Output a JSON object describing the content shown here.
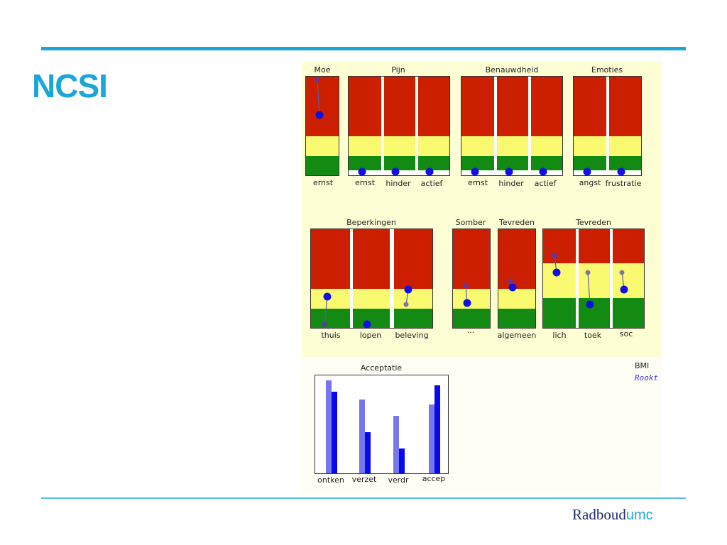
{
  "slide": {
    "title": "NCSI",
    "accent_color": "#1aa6d9",
    "logo": {
      "part1": "Radboud",
      "part2": "umc"
    }
  },
  "zones": {
    "red": "#cc1f00",
    "yellow": "#fafa70",
    "green": "#138a12"
  },
  "panels": [
    {
      "id": "moe",
      "title": "Moe",
      "labels": [
        "ernst"
      ]
    },
    {
      "id": "pijn",
      "title": "Pijn",
      "labels": [
        "ernst",
        "hinder",
        "actief"
      ]
    },
    {
      "id": "benauwdheid",
      "title": "Benauwdheid",
      "labels": [
        "ernst",
        "hinder",
        "actief"
      ]
    },
    {
      "id": "emoties",
      "title": "Emoties",
      "labels": [
        "angst",
        "frustratie"
      ]
    },
    {
      "id": "beperkingen",
      "title": "Beperkingen",
      "labels": [
        "thuis",
        "lopen",
        "beleving"
      ]
    },
    {
      "id": "somber",
      "title": "Somber",
      "labels": [
        "..."
      ]
    },
    {
      "id": "tevreden1",
      "title": "Tevreden",
      "labels": [
        "algemeen"
      ]
    },
    {
      "id": "tevreden2",
      "title": "Tevreden",
      "labels": [
        "lich",
        "toek",
        "soc"
      ]
    }
  ],
  "legend": {
    "bmi": "BMI",
    "rookt": "Rookt"
  },
  "chart_data": {
    "type": "bar",
    "title": "Acceptatie",
    "categories": [
      "ontken",
      "verzet",
      "verdr",
      "accep"
    ],
    "series": [
      {
        "color": "#7676f0",
        "values": [
          0.95,
          0.75,
          0.59,
          0.7
        ]
      },
      {
        "color": "#0a0ae8",
        "values": [
          0.83,
          0.42,
          0.25,
          0.9
        ]
      }
    ],
    "ylim": [
      0,
      1
    ],
    "grid": false
  }
}
